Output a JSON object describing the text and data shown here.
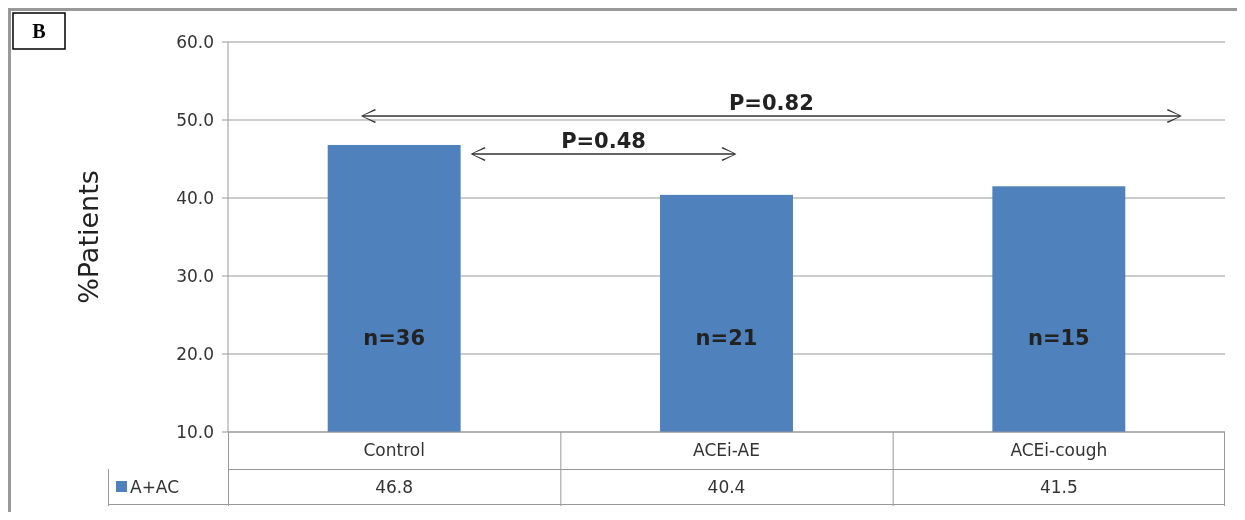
{
  "chart_data": {
    "type": "bar",
    "ylabel": "%Patients",
    "categories": [
      "Control",
      "ACEi-AE",
      "ACEi-cough"
    ],
    "series": [
      {
        "name": "A+AC",
        "color": "#4f81bd",
        "values": [
          46.8,
          40.4,
          41.5
        ]
      }
    ],
    "ylim": [
      10,
      60
    ],
    "yticks": [
      {
        "value": 10,
        "label": "10.0"
      },
      {
        "value": 20,
        "label": "20.0"
      },
      {
        "value": 30,
        "label": "30.0"
      },
      {
        "value": 40,
        "label": "40.0"
      },
      {
        "value": 50,
        "label": "50.0"
      },
      {
        "value": 60,
        "label": "60.0"
      }
    ],
    "grid": "y",
    "legend": "bottom",
    "data_labels": true,
    "annotations": [
      "B",
      "n=36",
      "n=21",
      "n=15",
      "P=0.48",
      "P=0.82"
    ]
  }
}
